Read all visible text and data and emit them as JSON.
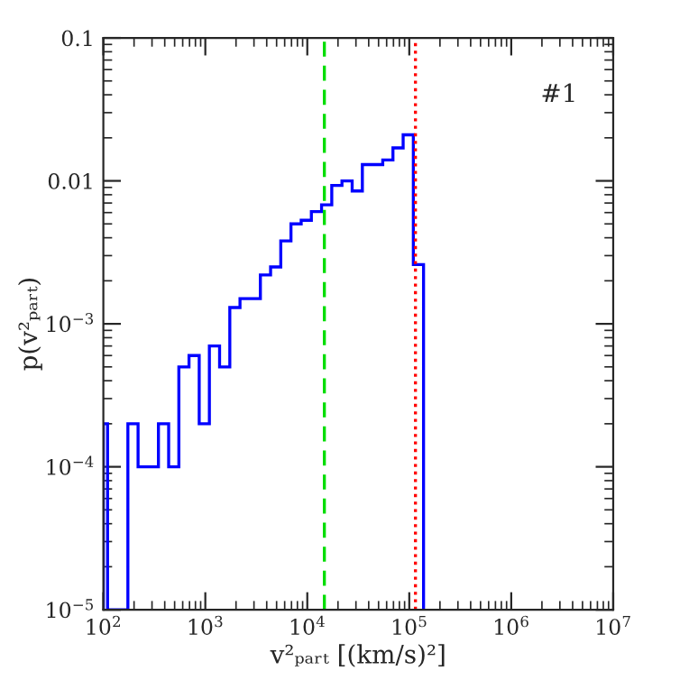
{
  "chart_data": {
    "type": "histogram",
    "bins": [
      100,
      110,
      138,
      174,
      219,
      275,
      347,
      437,
      550,
      692,
      871,
      1096,
      1380,
      1738,
      2188,
      2754,
      3467,
      4365,
      5495,
      6918,
      8710,
      10965,
      13804,
      17378,
      21878,
      27542,
      34674,
      43652,
      54954,
      69183,
      87096,
      109648,
      138038
    ],
    "values": [
      0.0002,
      null,
      null,
      0.0002,
      0.0001,
      0.0001,
      0.0002,
      0.0001,
      0.0005,
      0.0006,
      0.0002,
      0.0007,
      0.0005,
      0.0013,
      0.0015,
      0.0015,
      0.0022,
      0.0025,
      0.0038,
      0.005,
      0.0053,
      0.0061,
      0.0068,
      0.0093,
      0.01,
      0.0085,
      0.013,
      0.013,
      0.014,
      0.017,
      0.021,
      0.0026
    ],
    "color": "#0000ff",
    "log": "xy",
    "xlabel": "v²ₚₐᵣₜ [(km/s)²]",
    "ylabel": "p(v²ₚₐᵣₜ)",
    "xlim": [
      100,
      10000000
    ],
    "ylim": [
      1e-05,
      0.1
    ],
    "xticks": [
      {
        "value": 100,
        "label": "10$^{2}$"
      },
      {
        "value": 1000,
        "label": "10$^{3}$"
      },
      {
        "value": 10000,
        "label": "10$^{4}$"
      },
      {
        "value": 100000,
        "label": "10$^{5}$"
      },
      {
        "value": 1000000,
        "label": "10$^{6}$"
      },
      {
        "value": 10000000,
        "label": "10$^{7}$"
      }
    ],
    "yticks": [
      {
        "value": 1e-05,
        "label": "10$^{−5}$"
      },
      {
        "value": 0.0001,
        "label": "10$^{−4}$"
      },
      {
        "value": 0.001,
        "label": "10$^{−3}$"
      },
      0.01,
      0.1
    ],
    "ref_lines": [
      {
        "axis": "x",
        "value": 14700,
        "color": "#00dd00",
        "line_style": "dashed"
      },
      {
        "axis": "x",
        "value": 115000,
        "color": "#ff0000",
        "line_style": "dotted"
      }
    ],
    "annotations": [
      "#1"
    ]
  }
}
